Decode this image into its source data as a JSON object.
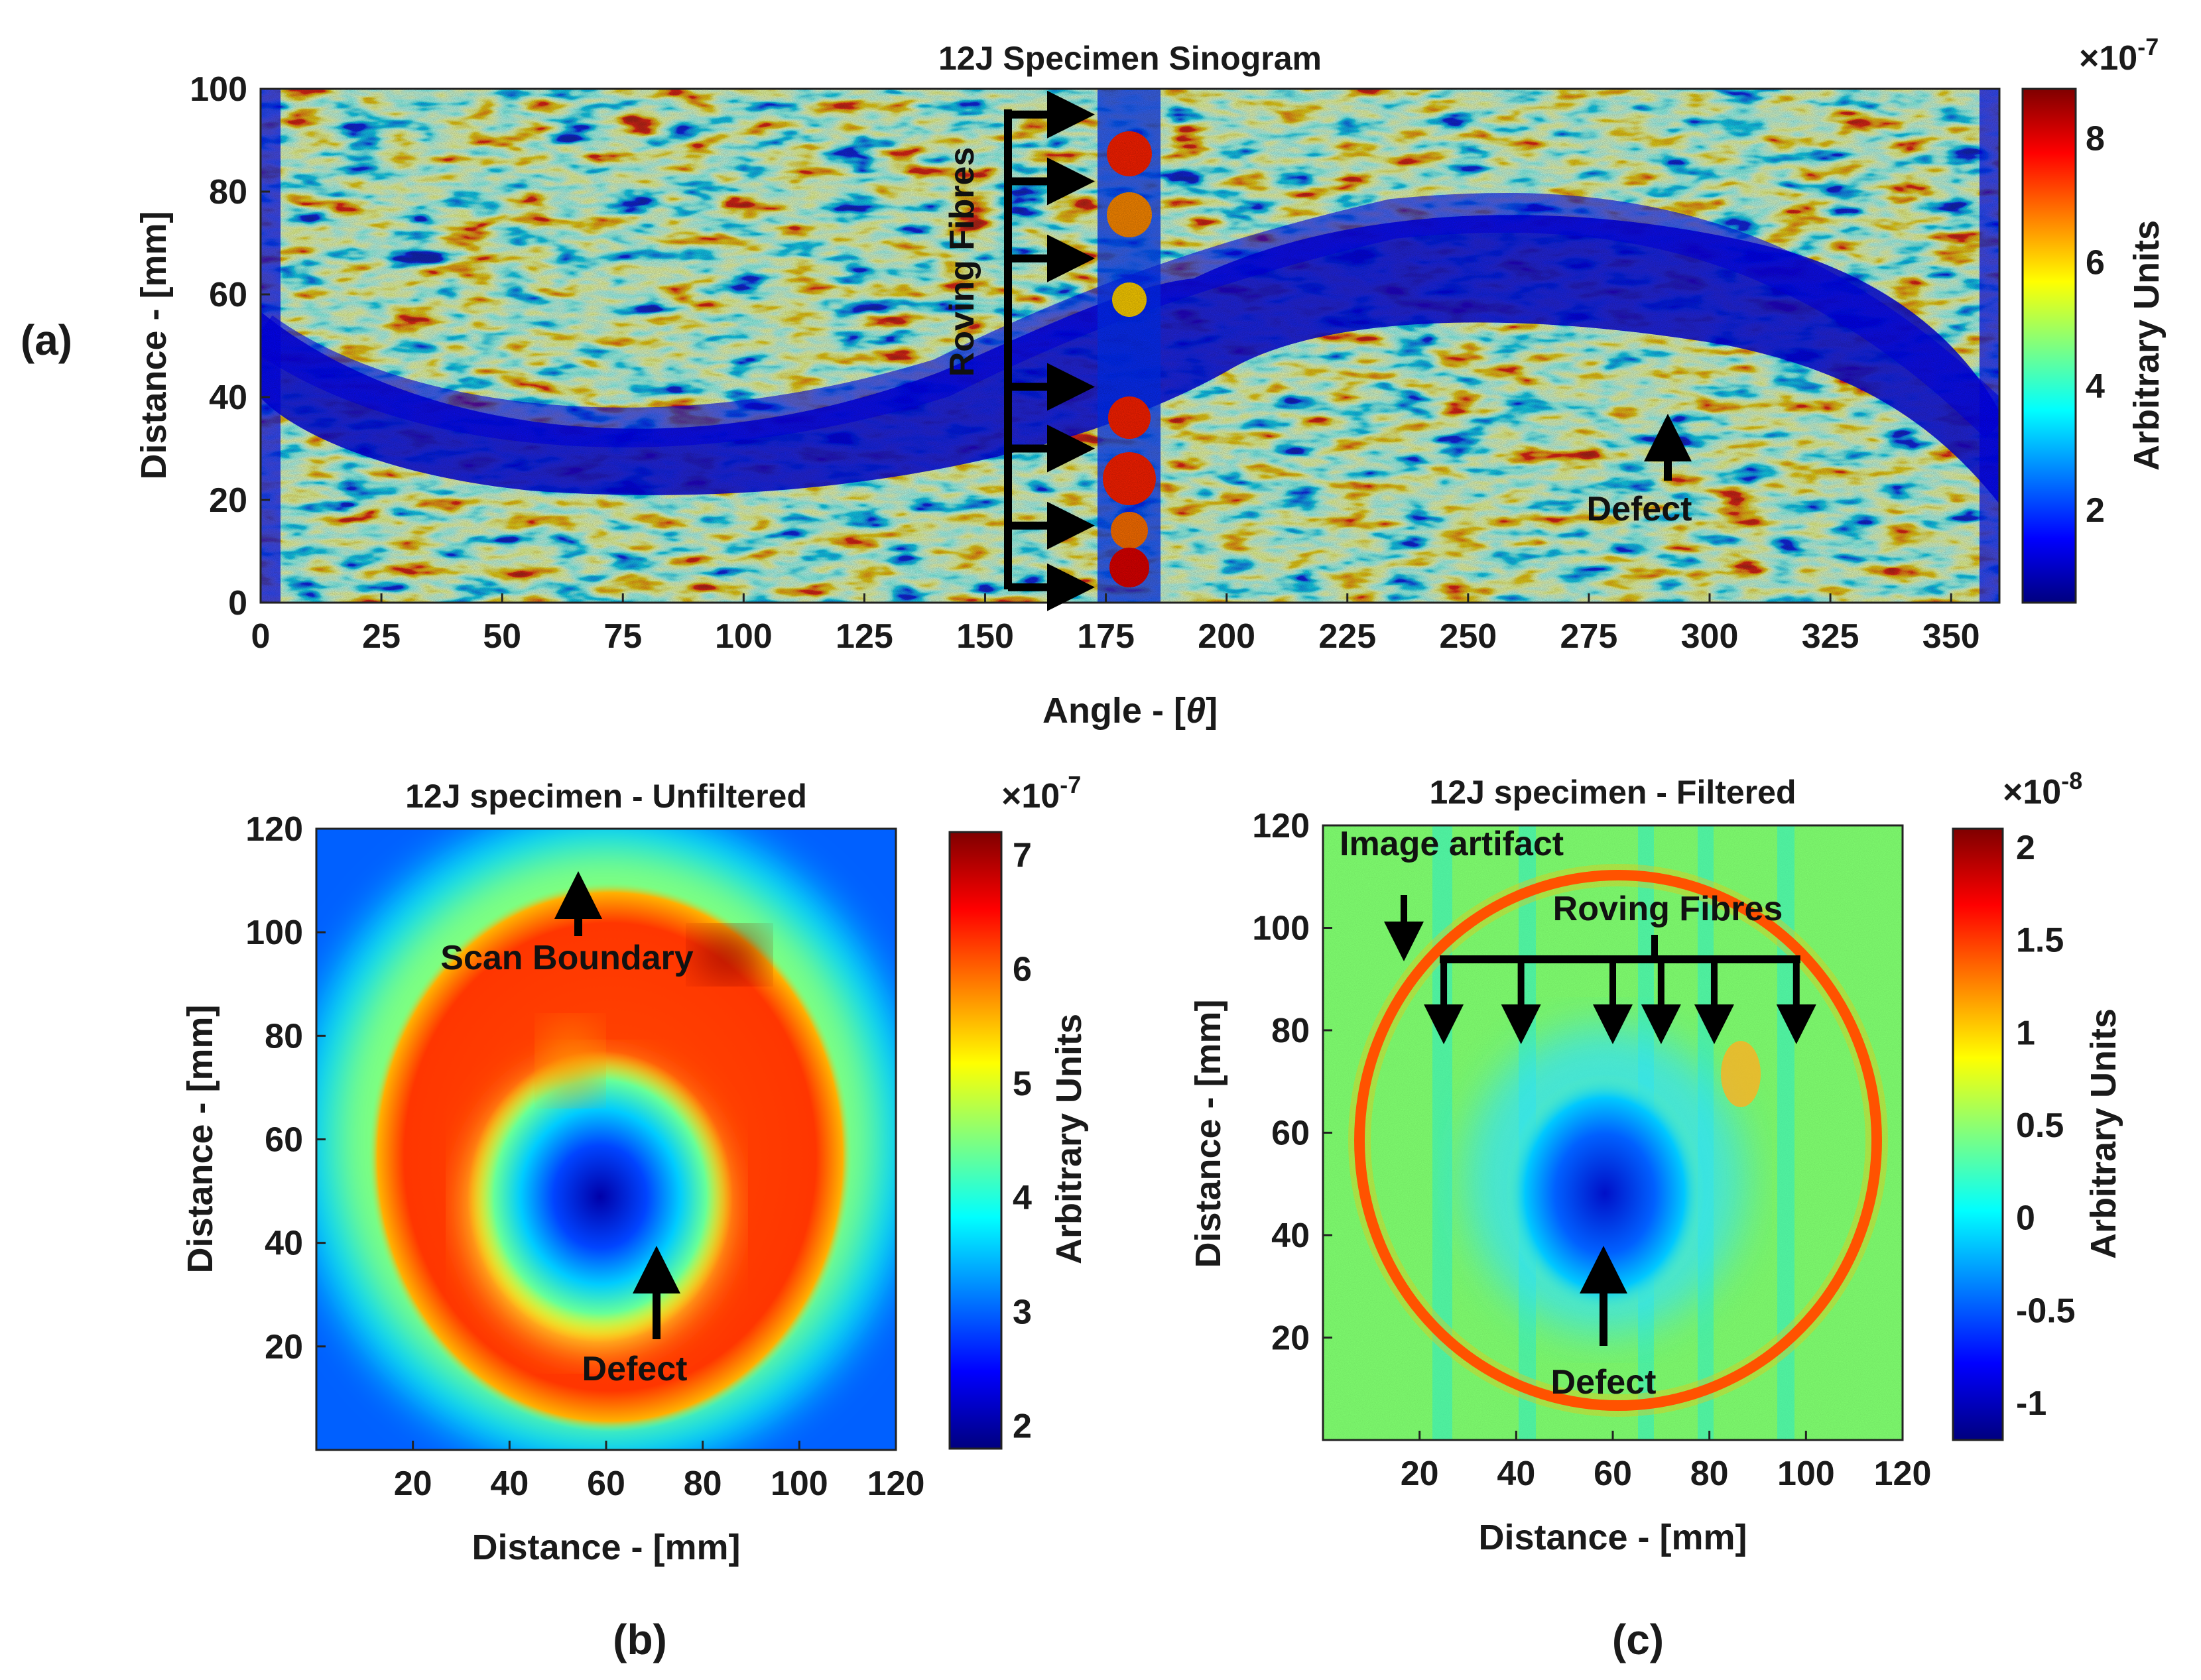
{
  "colors": {
    "jet": [
      "#00007f",
      "#0000ff",
      "#007fff",
      "#00ffff",
      "#7fff7f",
      "#ffff00",
      "#ff7f00",
      "#ff0000",
      "#7f0000"
    ],
    "annotation": "#000000",
    "background": "#ffffff"
  },
  "chart_data": [
    {
      "panel_label": "(a)",
      "type": "heatmap",
      "title": "12J Specimen Sinogram",
      "xlabel_prefix": "Angle - [",
      "xlabel_symbol": "θ",
      "xlabel_suffix": "]",
      "ylabel": "Distance - [mm]",
      "xlim": [
        0,
        360
      ],
      "ylim": [
        0,
        100
      ],
      "xticks": [
        "0",
        "25",
        "50",
        "75",
        "100",
        "125",
        "150",
        "175",
        "200",
        "225",
        "250",
        "275",
        "300",
        "325",
        "350"
      ],
      "yticks": [
        "0",
        "20",
        "40",
        "60",
        "80",
        "100"
      ],
      "colorbar": {
        "label": "Arbitrary Units",
        "exponent": "×10",
        "exponent_power": "-7",
        "range": [
          0.5,
          8.8
        ],
        "ticks": [
          "2",
          "4",
          "6",
          "8"
        ]
      },
      "annotations": [
        {
          "text": "Roving Fibres",
          "x": 157,
          "y": 70,
          "rotation": "vertical"
        },
        {
          "text": "Defect",
          "x": 290,
          "y": 18
        }
      ],
      "roving_fibre_arrows_y_mm": [
        95,
        82,
        67,
        42,
        30,
        15,
        3
      ],
      "defect_arrow": {
        "x": 291,
        "y_from": 24,
        "y_to": 34
      }
    },
    {
      "panel_label": "(b)",
      "type": "heatmap",
      "title": "12J specimen - Unfiltered",
      "xlabel": "Distance - [mm]",
      "ylabel": "Distance - [mm]",
      "xlim": [
        0,
        120
      ],
      "ylim": [
        0,
        120
      ],
      "xticks": [
        "20",
        "40",
        "60",
        "80",
        "100",
        "120"
      ],
      "yticks": [
        "20",
        "40",
        "60",
        "80",
        "100",
        "120"
      ],
      "colorbar": {
        "label": "Arbitrary Units",
        "exponent": "×10",
        "exponent_power": "-7",
        "range": [
          1.8,
          7.2
        ],
        "ticks": [
          "2",
          "3",
          "4",
          "5",
          "6",
          "7"
        ]
      },
      "annotations": [
        {
          "text": "Scan Boundary",
          "x": 56,
          "y": 98
        },
        {
          "text": "Defect",
          "x": 70,
          "y": 16
        }
      ]
    },
    {
      "panel_label": "(c)",
      "type": "heatmap",
      "title": "12J specimen - Filtered",
      "xlabel": "Distance - [mm]",
      "ylabel": "Distance - [mm]",
      "xlim": [
        0,
        120
      ],
      "ylim": [
        0,
        120
      ],
      "xticks": [
        "20",
        "40",
        "60",
        "80",
        "100",
        "120"
      ],
      "yticks": [
        "20",
        "40",
        "60",
        "80",
        "100",
        "120"
      ],
      "colorbar": {
        "label": "Arbitrary Units",
        "exponent": "×10",
        "exponent_power": "-8",
        "range": [
          -1.2,
          2.1
        ],
        "ticks": [
          "-1",
          "-0.5",
          "0",
          "0.5",
          "1",
          "1.5",
          "2"
        ]
      },
      "annotations": [
        {
          "text": "Image artifact",
          "x": 30,
          "y": 115
        },
        {
          "text": "Roving Fibres",
          "x": 72,
          "y": 104
        },
        {
          "text": "Defect",
          "x": 58,
          "y": 12
        }
      ],
      "roving_fibre_arrow_x_mm": [
        25,
        41,
        60,
        70,
        81,
        98
      ]
    }
  ]
}
